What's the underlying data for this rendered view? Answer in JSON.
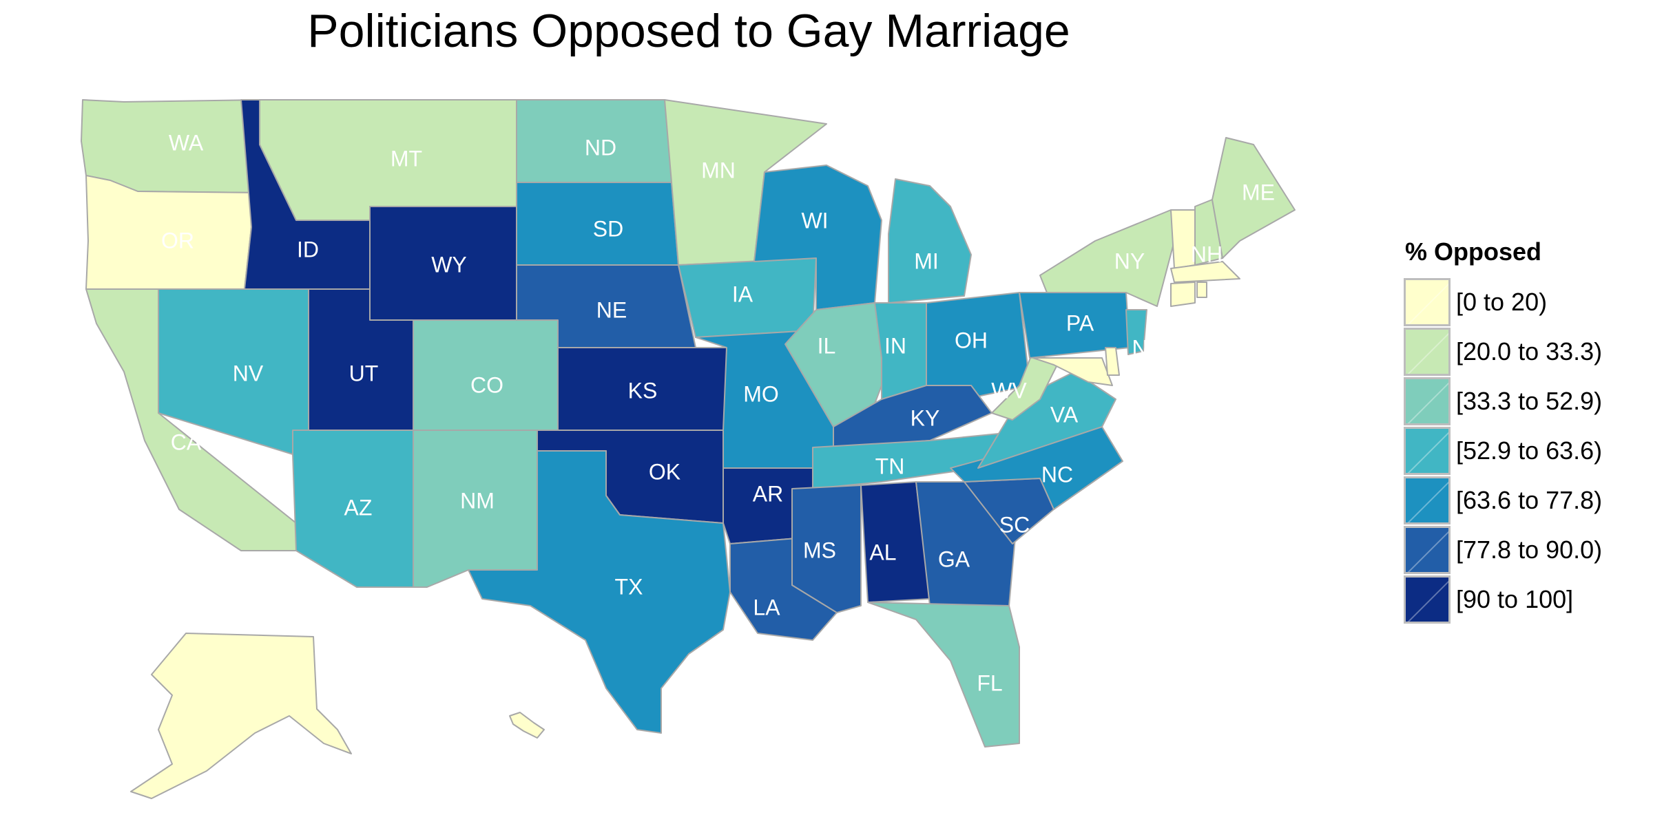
{
  "title": "Politicians Opposed to Gay Marriage",
  "legend": {
    "title": "% Opposed",
    "bins": [
      {
        "label": "[0 to 20)",
        "color": "#ffffcc"
      },
      {
        "label": "[20.0 to 33.3)",
        "color": "#c7e9b4"
      },
      {
        "label": "[33.3 to 52.9)",
        "color": "#7fcdbb"
      },
      {
        "label": "[52.9 to 63.6)",
        "color": "#41b6c4"
      },
      {
        "label": "[63.6 to 77.8)",
        "color": "#1d91c0"
      },
      {
        "label": "[77.8 to 90.0)",
        "color": "#225ea8"
      },
      {
        "label": "[90 to 100]",
        "color": "#0c2c84"
      }
    ]
  },
  "map_data": {
    "value_name": "% Opposed",
    "states": [
      {
        "abbr": "WA",
        "bin": 1
      },
      {
        "abbr": "OR",
        "bin": 0
      },
      {
        "abbr": "CA",
        "bin": 1
      },
      {
        "abbr": "ID",
        "bin": 6
      },
      {
        "abbr": "NV",
        "bin": 3
      },
      {
        "abbr": "MT",
        "bin": 1
      },
      {
        "abbr": "WY",
        "bin": 6
      },
      {
        "abbr": "UT",
        "bin": 6
      },
      {
        "abbr": "AZ",
        "bin": 3
      },
      {
        "abbr": "CO",
        "bin": 2
      },
      {
        "abbr": "NM",
        "bin": 2
      },
      {
        "abbr": "ND",
        "bin": 2
      },
      {
        "abbr": "SD",
        "bin": 4
      },
      {
        "abbr": "NE",
        "bin": 5
      },
      {
        "abbr": "KS",
        "bin": 6
      },
      {
        "abbr": "OK",
        "bin": 6
      },
      {
        "abbr": "TX",
        "bin": 4
      },
      {
        "abbr": "MN",
        "bin": 1
      },
      {
        "abbr": "IA",
        "bin": 3
      },
      {
        "abbr": "MO",
        "bin": 4
      },
      {
        "abbr": "AR",
        "bin": 6
      },
      {
        "abbr": "LA",
        "bin": 5
      },
      {
        "abbr": "WI",
        "bin": 4
      },
      {
        "abbr": "IL",
        "bin": 2
      },
      {
        "abbr": "MI",
        "bin": 3
      },
      {
        "abbr": "IN",
        "bin": 3
      },
      {
        "abbr": "OH",
        "bin": 4
      },
      {
        "abbr": "KY",
        "bin": 5
      },
      {
        "abbr": "TN",
        "bin": 3
      },
      {
        "abbr": "MS",
        "bin": 5
      },
      {
        "abbr": "AL",
        "bin": 6
      },
      {
        "abbr": "GA",
        "bin": 5
      },
      {
        "abbr": "FL",
        "bin": 2
      },
      {
        "abbr": "SC",
        "bin": 5
      },
      {
        "abbr": "NC",
        "bin": 4
      },
      {
        "abbr": "VA",
        "bin": 3
      },
      {
        "abbr": "WV",
        "bin": 1
      },
      {
        "abbr": "PA",
        "bin": 4
      },
      {
        "abbr": "NY",
        "bin": 1
      },
      {
        "abbr": "NJ",
        "bin": 3
      },
      {
        "abbr": "MD",
        "bin": 0
      },
      {
        "abbr": "DE",
        "bin": 0
      },
      {
        "abbr": "VT",
        "bin": 0
      },
      {
        "abbr": "NH",
        "bin": 1
      },
      {
        "abbr": "ME",
        "bin": 1
      },
      {
        "abbr": "MA",
        "bin": 0
      },
      {
        "abbr": "CT",
        "bin": 0
      },
      {
        "abbr": "RI",
        "bin": 0
      },
      {
        "abbr": "AK",
        "bin": 0
      },
      {
        "abbr": "HI",
        "bin": 0
      }
    ],
    "labels": {
      "WA": "WA",
      "OR": "OR",
      "CA": "CA",
      "ID": "ID",
      "NV": "NV",
      "MT": "MT",
      "WY": "WY",
      "UT": "UT",
      "AZ": "AZ",
      "CO": "CO",
      "NM": "NM",
      "ND": "ND",
      "SD": "SD",
      "NE": "NE",
      "KS": "KS",
      "OK": "OK",
      "TX": "TX",
      "MN": "MN",
      "IA": "IA",
      "MO": "MO",
      "AR": "AR",
      "LA": "LA",
      "WI": "WI",
      "IL": "IL",
      "MI": "MI",
      "IN": "IN",
      "OH": "OH",
      "KY": "KY",
      "TN": "TN",
      "MS": "MS",
      "AL": "AL",
      "GA": "GA",
      "FL": "FL",
      "SC": "SC",
      "NC": "NC",
      "VA": "VA",
      "WV": "WV",
      "PA": "PA",
      "NY": "NY",
      "NJ": "N",
      "ME": "ME",
      "NH": "NH"
    }
  }
}
